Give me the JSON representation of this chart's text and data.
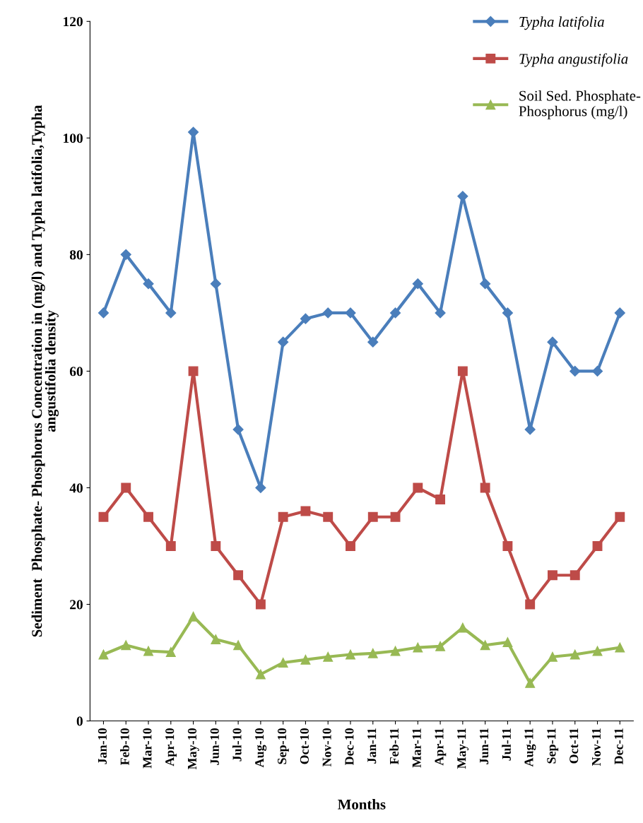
{
  "chart_data": {
    "type": "line",
    "xlabel": "Months",
    "ylabel": "Sediment  Phosphate- Phosphorus Concentration in (mg/l) and Typha latifolia,Typha\nangustifolia density",
    "categories": [
      "Jan-10",
      "Feb-10",
      "Mar-10",
      "Apr-10",
      "May-10",
      "Jun-10",
      "Jul-10",
      "Aug-10",
      "Sep-10",
      "Oct-10",
      "Nov-10",
      "Dec-10",
      "Jan-11",
      "Feb-11",
      "Mar-11",
      "Apr-11",
      "May-11",
      "Jun-11",
      "Jul-11",
      "Aug-11",
      "Sep-11",
      "Oct-11",
      "Nov-11",
      "Dec-11"
    ],
    "series": [
      {
        "name": "Typha latifolia",
        "color": "#4a7ebb",
        "marker": "diamond",
        "values": [
          70,
          80,
          75,
          70,
          101,
          75,
          50,
          40,
          65,
          69,
          70,
          70,
          65,
          70,
          75,
          70,
          90,
          75,
          70,
          50,
          65,
          60,
          60,
          70
        ]
      },
      {
        "name": "Typha angustifolia",
        "color": "#be4b48",
        "marker": "square",
        "values": [
          35,
          40,
          35,
          30,
          60,
          30,
          25,
          20,
          35,
          36,
          35,
          30,
          35,
          35,
          40,
          38,
          60,
          40,
          30,
          20,
          25,
          25,
          30,
          35
        ]
      },
      {
        "name": "Soil Sed. Phosphate-\nPhosphorus (mg/l)",
        "color": "#98b954",
        "marker": "triangle",
        "values": [
          11.4,
          13,
          12,
          11.8,
          17.9,
          14,
          13,
          8,
          10,
          10.5,
          11,
          11.4,
          11.6,
          12,
          12.6,
          12.8,
          16,
          13,
          13.5,
          6.5,
          11,
          11.4,
          12,
          12.6
        ]
      }
    ],
    "ylim": [
      0,
      120
    ],
    "yticks": [
      0,
      20,
      40,
      60,
      80,
      100,
      120
    ],
    "grid": false,
    "legend": "top right"
  }
}
